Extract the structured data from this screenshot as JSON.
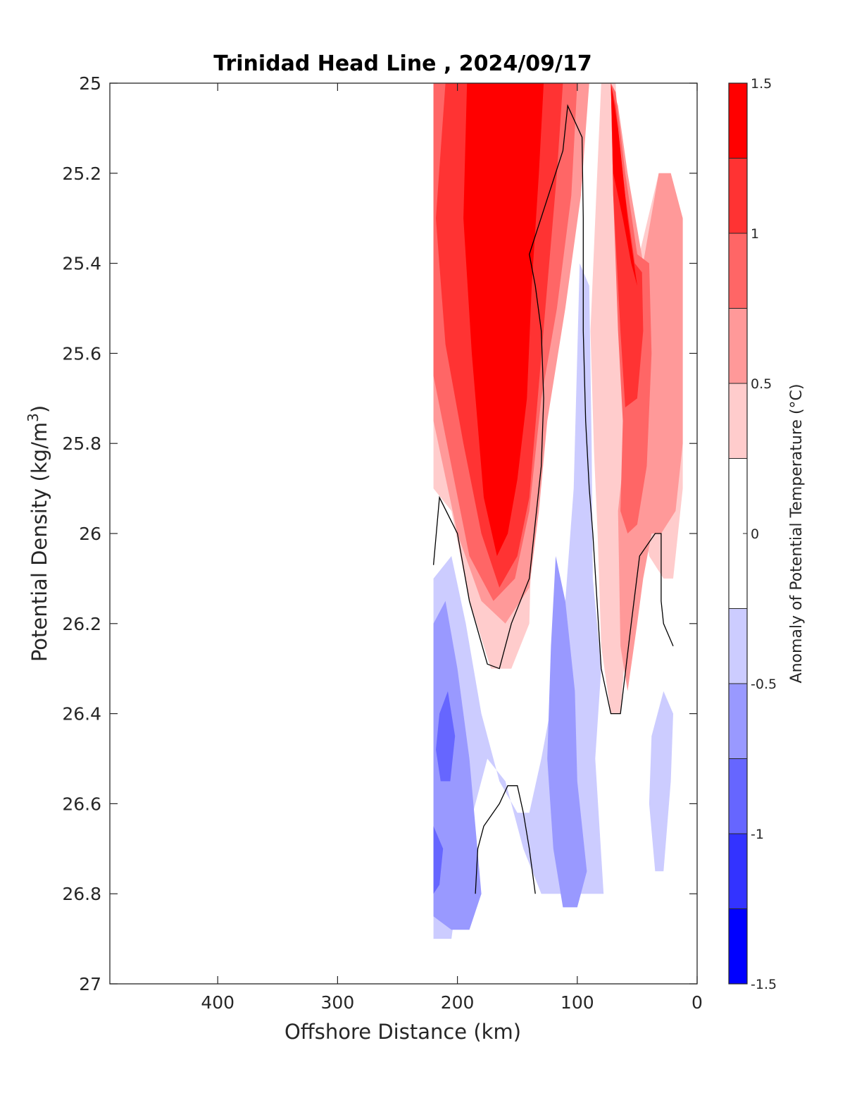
{
  "chart_data": {
    "type": "contour",
    "title": "Trinidad Head Line , 2024/09/17",
    "xlabel": "Offshore Distance (km)",
    "ylabel_main": "Potential Density (kg/m",
    "ylabel_sup": "3",
    "ylabel_close": ")",
    "xlim": [
      490,
      0
    ],
    "x_reversed": true,
    "ylim": [
      25,
      27
    ],
    "y_reversed": true,
    "x_ticks": [
      "400",
      "300",
      "200",
      "100",
      "0"
    ],
    "x_tick_values": [
      400,
      300,
      200,
      100,
      0
    ],
    "y_ticks": [
      "25",
      "25.2",
      "25.4",
      "25.6",
      "25.8",
      "26",
      "26.2",
      "26.4",
      "26.6",
      "26.8",
      "27"
    ],
    "y_tick_values": [
      25,
      25.2,
      25.4,
      25.6,
      25.8,
      26,
      26.2,
      26.4,
      26.6,
      26.8,
      27
    ],
    "colorbar": {
      "label": "Anomaly of Potential Temperature (°C)",
      "clim": [
        -1.5,
        1.5
      ],
      "ticks": [
        "1.5",
        "1",
        "0.5",
        "0",
        "-0.5",
        "-1",
        "-1.5"
      ],
      "tick_values": [
        1.5,
        1,
        0.5,
        0,
        -0.5,
        -1,
        -1.5
      ],
      "levels": [
        -1.5,
        -1.25,
        -1,
        -0.75,
        -0.5,
        -0.25,
        0.25,
        0.5,
        0.75,
        1,
        1.25,
        1.5
      ],
      "colors": [
        "#0000ff",
        "#3333ff",
        "#6666ff",
        "#9999ff",
        "#ccccff",
        "#ffffff",
        "#ffcccc",
        "#ff9999",
        "#ff6666",
        "#ff3333",
        "#ff0000"
      ]
    },
    "anomaly_regions": [
      {
        "level_min": 0.25,
        "color": "#ffcccc",
        "points": [
          [
            220,
            25.0
          ],
          [
            80,
            25.0
          ],
          [
            84,
            25.24
          ],
          [
            89,
            25.55
          ],
          [
            86,
            25.82
          ],
          [
            83,
            26.0
          ],
          [
            80,
            26.25
          ],
          [
            72,
            26.4
          ],
          [
            64,
            26.4
          ],
          [
            55,
            26.1
          ],
          [
            50,
            25.9
          ],
          [
            40,
            26.05
          ],
          [
            28,
            26.1
          ],
          [
            20,
            26.1
          ],
          [
            12,
            25.9
          ],
          [
            12,
            25.3
          ],
          [
            22,
            25.2
          ],
          [
            32,
            25.2
          ],
          [
            50,
            25.4
          ],
          [
            65,
            25.15
          ],
          [
            68,
            25.0
          ],
          [
            72,
            25.0
          ],
          [
            78,
            25.0
          ],
          [
            90,
            25.0
          ],
          [
            100,
            25.0
          ],
          [
            112,
            25.3
          ],
          [
            128,
            25.55
          ],
          [
            135,
            25.75
          ],
          [
            138,
            26.0
          ],
          [
            140,
            26.2
          ],
          [
            155,
            26.3
          ],
          [
            172,
            26.3
          ],
          [
            190,
            26.15
          ],
          [
            205,
            25.95
          ],
          [
            220,
            25.9
          ]
        ]
      },
      {
        "level_min": 0.5,
        "color": "#ff9999",
        "points": [
          [
            220,
            25.0
          ],
          [
            90,
            25.0
          ],
          [
            97,
            25.25
          ],
          [
            110,
            25.5
          ],
          [
            125,
            25.75
          ],
          [
            132,
            25.95
          ],
          [
            140,
            26.12
          ],
          [
            160,
            26.2
          ],
          [
            180,
            26.15
          ],
          [
            200,
            26.0
          ],
          [
            220,
            25.75
          ]
        ]
      },
      {
        "level_min": 0.5,
        "color": "#ff9999",
        "points": [
          [
            72,
            25.0
          ],
          [
            70,
            25.2
          ],
          [
            62,
            25.6
          ],
          [
            60,
            25.8
          ],
          [
            66,
            25.95
          ],
          [
            64,
            26.25
          ],
          [
            58,
            26.35
          ],
          [
            50,
            26.2
          ],
          [
            45,
            26.1
          ],
          [
            38,
            26.0
          ],
          [
            30,
            26.0
          ],
          [
            18,
            25.95
          ],
          [
            12,
            25.8
          ],
          [
            12,
            25.3
          ],
          [
            22,
            25.2
          ],
          [
            32,
            25.2
          ],
          [
            45,
            25.4
          ],
          [
            58,
            25.2
          ],
          [
            66,
            25.05
          ]
        ]
      },
      {
        "level_min": 0.75,
        "color": "#ff6666",
        "points": [
          [
            220,
            25.0
          ],
          [
            100,
            25.0
          ],
          [
            105,
            25.25
          ],
          [
            117,
            25.5
          ],
          [
            130,
            25.7
          ],
          [
            140,
            25.95
          ],
          [
            152,
            26.1
          ],
          [
            170,
            26.15
          ],
          [
            190,
            26.05
          ],
          [
            205,
            25.85
          ],
          [
            220,
            25.65
          ]
        ]
      },
      {
        "level_min": 0.75,
        "color": "#ff6666",
        "points": [
          [
            72,
            25.0
          ],
          [
            70,
            25.25
          ],
          [
            66,
            25.55
          ],
          [
            62,
            25.75
          ],
          [
            64,
            25.95
          ],
          [
            58,
            26.0
          ],
          [
            50,
            25.98
          ],
          [
            42,
            25.85
          ],
          [
            38,
            25.6
          ],
          [
            40,
            25.4
          ],
          [
            50,
            25.38
          ],
          [
            60,
            25.2
          ],
          [
            68,
            25.02
          ]
        ]
      },
      {
        "level_min": 1.0,
        "color": "#ff3333",
        "points": [
          [
            210,
            25.0
          ],
          [
            112,
            25.0
          ],
          [
            117,
            25.2
          ],
          [
            125,
            25.45
          ],
          [
            133,
            25.7
          ],
          [
            140,
            25.92
          ],
          [
            150,
            26.05
          ],
          [
            165,
            26.12
          ],
          [
            180,
            26.0
          ],
          [
            195,
            25.8
          ],
          [
            210,
            25.58
          ],
          [
            218,
            25.3
          ]
        ]
      },
      {
        "level_min": 1.0,
        "color": "#ff3333",
        "points": [
          [
            72,
            25.0
          ],
          [
            70,
            25.25
          ],
          [
            64,
            25.55
          ],
          [
            60,
            25.72
          ],
          [
            50,
            25.7
          ],
          [
            45,
            25.55
          ],
          [
            46,
            25.42
          ],
          [
            52,
            25.4
          ],
          [
            60,
            25.25
          ],
          [
            68,
            25.05
          ]
        ]
      },
      {
        "level_min": 1.25,
        "color": "#ff0000",
        "points": [
          [
            192,
            25.0
          ],
          [
            128,
            25.0
          ],
          [
            132,
            25.2
          ],
          [
            138,
            25.45
          ],
          [
            142,
            25.7
          ],
          [
            150,
            25.88
          ],
          [
            158,
            26.0
          ],
          [
            167,
            26.05
          ],
          [
            178,
            25.92
          ],
          [
            188,
            25.6
          ],
          [
            195,
            25.3
          ]
        ]
      },
      {
        "level_min": 1.25,
        "color": "#ff0000",
        "points": [
          [
            72,
            25.0
          ],
          [
            70,
            25.2
          ],
          [
            62,
            25.3
          ],
          [
            55,
            25.4
          ],
          [
            50,
            25.45
          ],
          [
            58,
            25.3
          ],
          [
            66,
            25.1
          ]
        ]
      },
      {
        "level_min": -0.5,
        "color": "#ccccff",
        "points": [
          [
            220,
            26.1
          ],
          [
            205,
            26.05
          ],
          [
            193,
            26.2
          ],
          [
            180,
            26.4
          ],
          [
            165,
            26.55
          ],
          [
            150,
            26.62
          ],
          [
            140,
            26.62
          ],
          [
            130,
            26.5
          ],
          [
            118,
            26.33
          ],
          [
            110,
            26.15
          ],
          [
            103,
            25.9
          ],
          [
            100,
            25.6
          ],
          [
            98,
            25.4
          ],
          [
            90,
            25.45
          ],
          [
            88,
            25.8
          ],
          [
            87,
            26.1
          ],
          [
            80,
            26.3
          ],
          [
            85,
            26.5
          ],
          [
            78,
            26.8
          ],
          [
            130,
            26.8
          ],
          [
            145,
            26.7
          ],
          [
            160,
            26.55
          ],
          [
            175,
            26.5
          ],
          [
            190,
            26.65
          ],
          [
            200,
            26.8
          ],
          [
            205,
            26.9
          ],
          [
            220,
            26.9
          ]
        ]
      },
      {
        "level_min": -0.5,
        "color": "#ccccff",
        "points": [
          [
            28,
            26.35
          ],
          [
            20,
            26.4
          ],
          [
            22,
            26.55
          ],
          [
            28,
            26.75
          ],
          [
            35,
            26.75
          ],
          [
            40,
            26.6
          ],
          [
            38,
            26.45
          ]
        ]
      },
      {
        "level_min": -0.75,
        "color": "#9999ff",
        "points": [
          [
            220,
            26.2
          ],
          [
            210,
            26.15
          ],
          [
            200,
            26.3
          ],
          [
            190,
            26.5
          ],
          [
            185,
            26.65
          ],
          [
            180,
            26.8
          ],
          [
            190,
            26.88
          ],
          [
            205,
            26.88
          ],
          [
            220,
            26.85
          ]
        ]
      },
      {
        "level_min": -0.75,
        "color": "#9999ff",
        "points": [
          [
            118,
            26.05
          ],
          [
            110,
            26.15
          ],
          [
            102,
            26.35
          ],
          [
            100,
            26.55
          ],
          [
            92,
            26.75
          ],
          [
            100,
            26.83
          ],
          [
            112,
            26.83
          ],
          [
            120,
            26.7
          ],
          [
            125,
            26.5
          ],
          [
            122,
            26.25
          ]
        ]
      },
      {
        "level_min": -1.0,
        "color": "#6666ff",
        "points": [
          [
            215,
            26.4
          ],
          [
            208,
            26.35
          ],
          [
            202,
            26.45
          ],
          [
            206,
            26.55
          ],
          [
            214,
            26.55
          ],
          [
            218,
            26.48
          ]
        ]
      },
      {
        "level_min": -1.0,
        "color": "#6666ff",
        "points": [
          [
            220,
            26.65
          ],
          [
            212,
            26.7
          ],
          [
            215,
            26.78
          ],
          [
            220,
            26.8
          ]
        ]
      }
    ],
    "zero_contours": [
      {
        "points": [
          [
            220,
            26.07
          ],
          [
            215,
            25.92
          ],
          [
            200,
            26.0
          ],
          [
            190,
            26.15
          ],
          [
            175,
            26.29
          ],
          [
            165,
            26.3
          ],
          [
            155,
            26.2
          ],
          [
            140,
            26.1
          ],
          [
            130,
            25.85
          ],
          [
            128,
            25.7
          ],
          [
            130,
            25.55
          ],
          [
            135,
            25.45
          ],
          [
            140,
            25.38
          ],
          [
            112,
            25.15
          ],
          [
            108,
            25.05
          ],
          [
            96,
            25.12
          ],
          [
            95,
            25.3
          ],
          [
            95,
            25.55
          ],
          [
            93,
            25.75
          ],
          [
            90,
            25.9
          ],
          [
            87,
            26.0
          ],
          [
            80,
            26.3
          ],
          [
            72,
            26.4
          ],
          [
            64,
            26.4
          ],
          [
            55,
            26.2
          ],
          [
            48,
            26.05
          ],
          [
            35,
            26.0
          ],
          [
            30,
            26.0
          ],
          [
            30,
            26.15
          ],
          [
            28,
            26.2
          ],
          [
            20,
            26.25
          ]
        ]
      },
      {
        "points": [
          [
            185,
            26.8
          ],
          [
            183,
            26.7
          ],
          [
            178,
            26.65
          ],
          [
            165,
            26.6
          ],
          [
            158,
            26.56
          ],
          [
            150,
            26.56
          ],
          [
            145,
            26.62
          ],
          [
            140,
            26.7
          ],
          [
            135,
            26.8
          ]
        ]
      }
    ]
  }
}
